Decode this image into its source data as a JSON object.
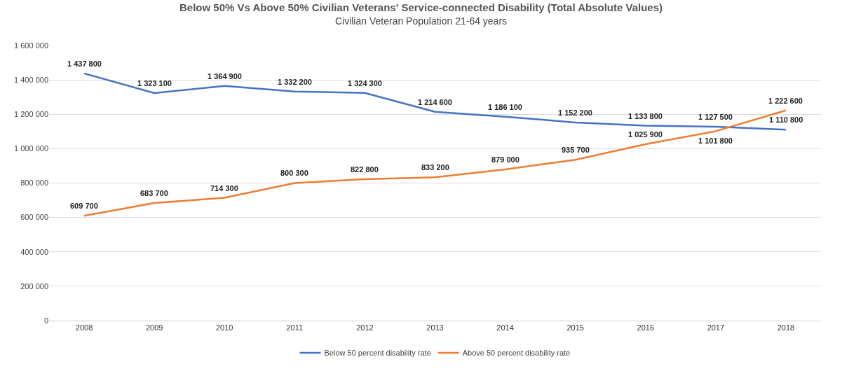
{
  "chart_data": {
    "type": "line",
    "title": "Below 50% Vs Above 50% Civilian Veterans' Service-connected Disability (Total Absolute Values)",
    "subtitle": "Civilian Veteran Population 21-64 years",
    "categories": [
      "2008",
      "2009",
      "2010",
      "2011",
      "2012",
      "2013",
      "2014",
      "2015",
      "2016",
      "2017",
      "2018"
    ],
    "series": [
      {
        "name": "Below 50 percent disability rate",
        "color": "#4472c4",
        "values": [
          1437800,
          1323100,
          1364900,
          1332200,
          1324300,
          1214600,
          1186100,
          1152200,
          1133800,
          1127500,
          1110800
        ],
        "value_labels": [
          "1 437 800",
          "1 323 100",
          "1 364 900",
          "1 332 200",
          "1 324 300",
          "1 214 600",
          "1 186 100",
          "1 152 200",
          "1 133 800",
          "1 127 500",
          "1 110 800"
        ]
      },
      {
        "name": "Above 50 percent disability rate",
        "color": "#ed7d31",
        "values": [
          609700,
          683700,
          714300,
          800300,
          822800,
          833200,
          879000,
          935700,
          1025900,
          1101800,
          1222600
        ],
        "value_labels": [
          "609 700",
          "683 700",
          "714 300",
          "800 300",
          "822 800",
          "833 200",
          "879 000",
          "935 700",
          "1 025 900",
          "1 101 800",
          "1 222 600"
        ]
      }
    ],
    "ylim": [
      0,
      1600000
    ],
    "yticks": [
      0,
      {
        "value": 200000,
        "label": "200 000"
      },
      {
        "value": 400000,
        "label": "400 000"
      },
      {
        "value": 600000,
        "label": "600 000"
      },
      {
        "value": 800000,
        "label": "800 000"
      },
      {
        "value": 1000000,
        "label": "1 000 000"
      },
      {
        "value": 1200000,
        "label": "1 200 000"
      },
      {
        "value": 1400000,
        "label": "1 400 000"
      },
      {
        "value": 1600000,
        "label": "1 600 000"
      }
    ],
    "grid": "y",
    "legend": "bottom",
    "marker": "none",
    "line_style": "solid"
  }
}
